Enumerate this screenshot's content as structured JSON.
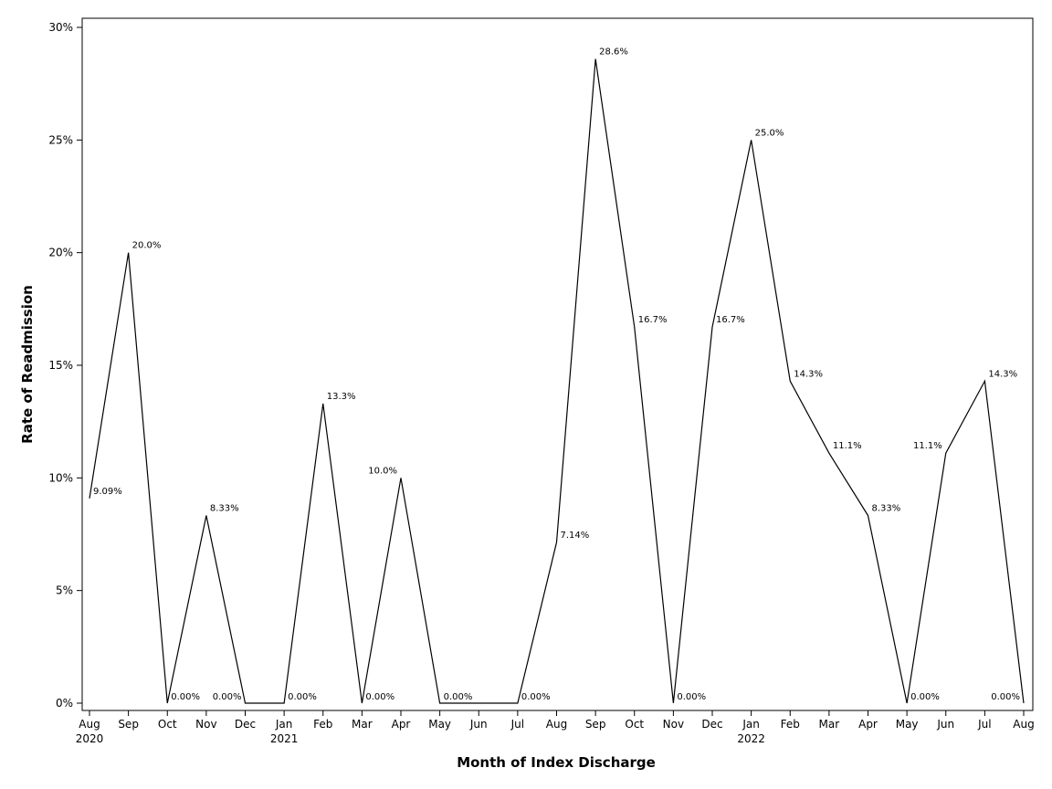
{
  "chart_data": {
    "type": "line",
    "xlabel": "Month of Index Discharge",
    "ylabel": "Rate of Readmission",
    "ylim": [
      0,
      30
    ],
    "y_ticks": [
      0,
      5,
      10,
      15,
      20,
      25,
      30
    ],
    "y_tick_labels": [
      "0%",
      "5%",
      "10%",
      "15%",
      "20%",
      "25%",
      "30%"
    ],
    "grid": false,
    "legend": "none",
    "line_color": "#000000",
    "categories": [
      "Aug",
      "Sep",
      "Oct",
      "Nov",
      "Dec",
      "Jan",
      "Feb",
      "Mar",
      "Apr",
      "May",
      "Jun",
      "Jul",
      "Aug",
      "Sep",
      "Oct",
      "Nov",
      "Dec",
      "Jan",
      "Feb",
      "Mar",
      "Apr",
      "May",
      "Jun",
      "Jul",
      "Aug"
    ],
    "year_labels": [
      "2020",
      "",
      "",
      "",
      "",
      "2021",
      "",
      "",
      "",
      "",
      "",
      "",
      "",
      "",
      "",
      "",
      "",
      "2022",
      "",
      "",
      "",
      "",
      "",
      "",
      ""
    ],
    "values": [
      9.09,
      20.0,
      0.0,
      8.33,
      0.0,
      0.0,
      13.3,
      0.0,
      10.0,
      0.0,
      0.0,
      0.0,
      7.14,
      28.6,
      16.7,
      0.0,
      16.7,
      25.0,
      14.3,
      11.1,
      8.33,
      0.0,
      11.1,
      14.3,
      0.0
    ],
    "data_labels": [
      "9.09%",
      "20.0%",
      "0.00%",
      "8.33%",
      "0.00%",
      "0.00%",
      "13.3%",
      "0.00%",
      "10.0%",
      "0.00%",
      "",
      "0.00%",
      "7.14%",
      "28.6%",
      "16.7%",
      "0.00%",
      "16.7%",
      "25.0%",
      "14.3%",
      "11.1%",
      "8.33%",
      "0.00%",
      "11.1%",
      "14.3%",
      "0.00%"
    ],
    "data_label_sides": [
      "right",
      "right",
      "right",
      "right",
      "left",
      "right",
      "right",
      "right",
      "left",
      "right",
      "right",
      "right",
      "right",
      "right",
      "right",
      "right",
      "right",
      "right",
      "right",
      "right",
      "right",
      "right",
      "left",
      "right",
      "left"
    ]
  }
}
